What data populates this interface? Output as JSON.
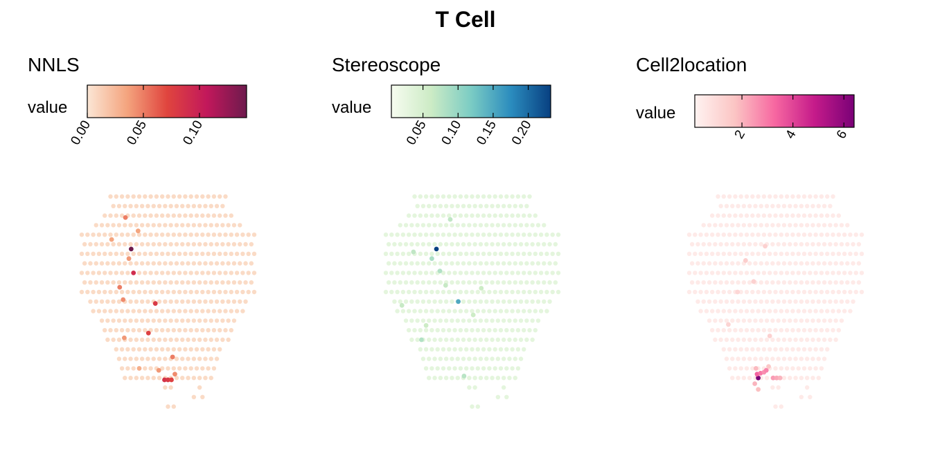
{
  "title": "T Cell",
  "chart_data": [
    {
      "type": "heatmap",
      "subtype": "spatial-spot-map",
      "title": "NNLS",
      "legend_title": "value",
      "colors": [
        "#fbe6d5",
        "#f4a47e",
        "#e0453e",
        "#c2185b",
        "#6d1a4d"
      ],
      "value_range": [
        0,
        0.142
      ],
      "ticks": [
        0,
        0.05,
        0.1
      ],
      "tick_labels": [
        "0.00",
        "0.05",
        "0.10"
      ],
      "base_value": 0.006,
      "highlights": [
        {
          "x": 4.3,
          "y": 5.5,
          "value": 0.142
        },
        {
          "x": 4.5,
          "y": 8.0,
          "value": 0.09
        },
        {
          "x": 6.4,
          "y": 11.2,
          "value": 0.08
        },
        {
          "x": 5.8,
          "y": 14.3,
          "value": 0.075
        },
        {
          "x": 7.2,
          "y": 19.2,
          "value": 0.085
        },
        {
          "x": 7.5,
          "y": 19.2,
          "value": 0.08
        },
        {
          "x": 7.8,
          "y": 19.2,
          "value": 0.075
        },
        {
          "x": 3.8,
          "y": 2.2,
          "value": 0.05
        },
        {
          "x": 3.3,
          "y": 9.5,
          "value": 0.05
        },
        {
          "x": 3.6,
          "y": 10.8,
          "value": 0.045
        },
        {
          "x": 7.9,
          "y": 16.8,
          "value": 0.05
        },
        {
          "x": 3.7,
          "y": 14.8,
          "value": 0.04
        },
        {
          "x": 4.1,
          "y": 6.5,
          "value": 0.04
        },
        {
          "x": 2.6,
          "y": 4.5,
          "value": 0.035
        },
        {
          "x": 4.9,
          "y": 3.6,
          "value": 0.035
        },
        {
          "x": 6.7,
          "y": 18.2,
          "value": 0.04
        },
        {
          "x": 8.1,
          "y": 18.6,
          "value": 0.045
        },
        {
          "x": 5.0,
          "y": 18.0,
          "value": 0.03
        }
      ]
    },
    {
      "type": "heatmap",
      "subtype": "spatial-spot-map",
      "title": "Stereoscope",
      "legend_title": "value",
      "colors": [
        "#f7fcf0",
        "#ccebc5",
        "#7bccc4",
        "#2b8cbe",
        "#084081"
      ],
      "value_range": [
        0.005,
        0.232
      ],
      "ticks": [
        0.05,
        0.1,
        0.15,
        0.2
      ],
      "tick_labels": [
        "0.05",
        "0.10",
        "0.15",
        "0.20"
      ],
      "base_value": 0.03,
      "highlights": [
        {
          "x": 4.4,
          "y": 5.5,
          "value": 0.232
        },
        {
          "x": 6.3,
          "y": 11.0,
          "value": 0.15
        },
        {
          "x": 4.0,
          "y": 6.5,
          "value": 0.085
        },
        {
          "x": 4.7,
          "y": 7.8,
          "value": 0.08
        },
        {
          "x": 3.1,
          "y": 15.0,
          "value": 0.08
        },
        {
          "x": 6.8,
          "y": 18.8,
          "value": 0.075
        },
        {
          "x": 2.4,
          "y": 5.8,
          "value": 0.07
        },
        {
          "x": 5.6,
          "y": 2.4,
          "value": 0.07
        },
        {
          "x": 1.4,
          "y": 11.4,
          "value": 0.065
        },
        {
          "x": 7.6,
          "y": 12.4,
          "value": 0.06
        },
        {
          "x": 8.3,
          "y": 9.6,
          "value": 0.06
        },
        {
          "x": 5.2,
          "y": 9.3,
          "value": 0.065
        },
        {
          "x": 3.5,
          "y": 13.5,
          "value": 0.06
        }
      ]
    },
    {
      "type": "heatmap",
      "subtype": "spatial-spot-map",
      "title": "Cell2location",
      "legend_title": "value",
      "colors": [
        "#fff3f1",
        "#fbc5c4",
        "#f768a1",
        "#c51b8a",
        "#7a0177"
      ],
      "value_range": [
        0.15,
        6.4
      ],
      "ticks": [
        2,
        4,
        6
      ],
      "tick_labels": [
        "2",
        "4",
        "6"
      ],
      "base_value": 0.45,
      "highlights": [
        {
          "x": 6.0,
          "y": 19.0,
          "value": 6.4
        },
        {
          "x": 5.9,
          "y": 18.6,
          "value": 3.4
        },
        {
          "x": 6.2,
          "y": 18.5,
          "value": 3.0
        },
        {
          "x": 6.5,
          "y": 18.4,
          "value": 2.6
        },
        {
          "x": 6.7,
          "y": 18.2,
          "value": 2.8
        },
        {
          "x": 7.3,
          "y": 19.0,
          "value": 2.4
        },
        {
          "x": 7.6,
          "y": 19.0,
          "value": 2.2
        },
        {
          "x": 7.9,
          "y": 19.0,
          "value": 2.0
        },
        {
          "x": 5.7,
          "y": 19.6,
          "value": 2.0
        },
        {
          "x": 6.0,
          "y": 20.2,
          "value": 1.8
        },
        {
          "x": 5.8,
          "y": 18.0,
          "value": 1.9
        },
        {
          "x": 6.9,
          "y": 17.8,
          "value": 1.6
        },
        {
          "x": 4.9,
          "y": 6.7,
          "value": 1.4
        },
        {
          "x": 5.6,
          "y": 8.9,
          "value": 1.3
        },
        {
          "x": 6.6,
          "y": 5.2,
          "value": 1.3
        },
        {
          "x": 3.4,
          "y": 13.4,
          "value": 1.2
        },
        {
          "x": 7.0,
          "y": 14.6,
          "value": 1.3
        },
        {
          "x": 4.2,
          "y": 10.0,
          "value": 1.1
        }
      ]
    }
  ]
}
